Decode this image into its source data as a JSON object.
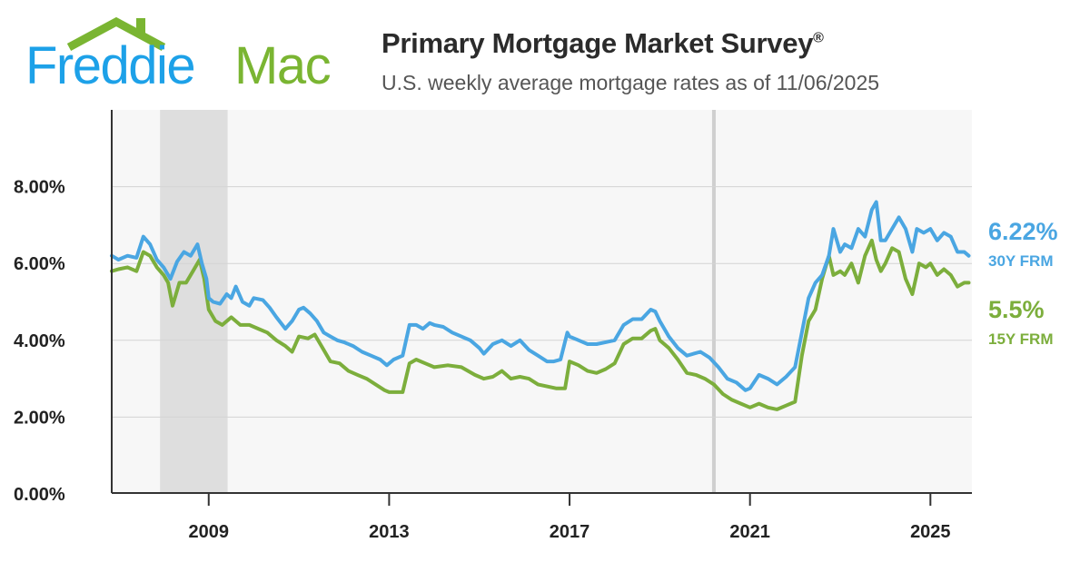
{
  "brand": {
    "name_part1": "Freddie",
    "name_part2": "Mac",
    "blue": "#1da1e8",
    "green": "#7ab532"
  },
  "header": {
    "title": "Primary Mortgage Market Survey",
    "title_mark": "®",
    "subtitle": "U.S. weekly average mortgage rates as of 11/06/2025"
  },
  "legend": {
    "frm30": {
      "value": "6.22%",
      "label": "30Y FRM",
      "color": "#4aa6e2"
    },
    "frm15": {
      "value": "5.5%",
      "label": "15Y FRM",
      "color": "#7cae3c"
    }
  },
  "chart_data": {
    "type": "line",
    "title": "Primary Mortgage Market Survey",
    "subtitle": "U.S. weekly average mortgage rates as of 11/06/2025",
    "xlim": [
      2006.85,
      2025.92
    ],
    "ylim": [
      0,
      10
    ],
    "y_ticks": [
      0,
      2,
      4,
      6,
      8
    ],
    "y_tick_labels": [
      "0.00%",
      "2.00%",
      "4.00%",
      "6.00%",
      "8.00%"
    ],
    "x_ticks": [
      2009,
      2013,
      2017,
      2021,
      2025
    ],
    "x_tick_labels": [
      "2009",
      "2013",
      "2017",
      "2021",
      "2025"
    ],
    "grid": true,
    "shaded_periods": [
      [
        2007.92,
        2009.42
      ]
    ],
    "vertical_markers": [
      2020.2
    ],
    "legend_position": "right",
    "series": [
      {
        "name": "30Y FRM",
        "color": "#4aa6e2",
        "x": [
          2006.85,
          2007.0,
          2007.2,
          2007.4,
          2007.55,
          2007.7,
          2007.85,
          2008.0,
          2008.15,
          2008.3,
          2008.45,
          2008.6,
          2008.75,
          2008.85,
          2008.95,
          2009.0,
          2009.1,
          2009.25,
          2009.4,
          2009.5,
          2009.6,
          2009.75,
          2009.9,
          2010.0,
          2010.2,
          2010.35,
          2010.5,
          2010.7,
          2010.85,
          2011.0,
          2011.1,
          2011.25,
          2011.4,
          2011.55,
          2011.7,
          2011.85,
          2012.0,
          2012.2,
          2012.4,
          2012.6,
          2012.8,
          2012.95,
          2013.1,
          2013.3,
          2013.45,
          2013.6,
          2013.75,
          2013.9,
          2014.0,
          2014.2,
          2014.4,
          2014.6,
          2014.8,
          2015.0,
          2015.1,
          2015.3,
          2015.5,
          2015.7,
          2015.9,
          2016.1,
          2016.3,
          2016.5,
          2016.65,
          2016.8,
          2016.95,
          2017.0,
          2017.2,
          2017.4,
          2017.6,
          2017.8,
          2018.0,
          2018.2,
          2018.4,
          2018.6,
          2018.8,
          2018.9,
          2019.0,
          2019.2,
          2019.4,
          2019.6,
          2019.75,
          2019.9,
          2020.1,
          2020.3,
          2020.5,
          2020.7,
          2020.9,
          2021.0,
          2021.2,
          2021.4,
          2021.6,
          2021.8,
          2022.0,
          2022.15,
          2022.3,
          2022.45,
          2022.6,
          2022.75,
          2022.85,
          2023.0,
          2023.1,
          2023.25,
          2023.4,
          2023.55,
          2023.7,
          2023.8,
          2023.9,
          2024.0,
          2024.15,
          2024.3,
          2024.45,
          2024.6,
          2024.7,
          2024.85,
          2025.0,
          2025.15,
          2025.3,
          2025.45,
          2025.6,
          2025.75,
          2025.85
        ],
        "y": [
          6.2,
          6.1,
          6.2,
          6.15,
          6.7,
          6.5,
          6.1,
          5.9,
          5.6,
          6.05,
          6.3,
          6.2,
          6.5,
          6.0,
          5.6,
          5.1,
          5.0,
          4.95,
          5.2,
          5.1,
          5.4,
          5.0,
          4.9,
          5.1,
          5.05,
          4.85,
          4.6,
          4.3,
          4.5,
          4.8,
          4.85,
          4.7,
          4.5,
          4.2,
          4.1,
          4.0,
          3.95,
          3.85,
          3.7,
          3.6,
          3.5,
          3.35,
          3.5,
          3.6,
          4.4,
          4.4,
          4.3,
          4.45,
          4.4,
          4.35,
          4.2,
          4.1,
          4.0,
          3.8,
          3.65,
          3.9,
          4.0,
          3.85,
          4.0,
          3.75,
          3.6,
          3.45,
          3.45,
          3.5,
          4.2,
          4.1,
          4.0,
          3.9,
          3.9,
          3.95,
          4.0,
          4.4,
          4.55,
          4.55,
          4.8,
          4.75,
          4.5,
          4.1,
          3.8,
          3.6,
          3.65,
          3.7,
          3.55,
          3.3,
          3.0,
          2.9,
          2.7,
          2.75,
          3.1,
          3.0,
          2.85,
          3.05,
          3.3,
          4.2,
          5.1,
          5.5,
          5.7,
          6.2,
          6.9,
          6.3,
          6.5,
          6.4,
          6.9,
          6.7,
          7.4,
          7.6,
          6.6,
          6.6,
          6.9,
          7.2,
          6.9,
          6.3,
          6.9,
          6.8,
          6.9,
          6.6,
          6.8,
          6.7,
          6.3,
          6.3,
          6.2
        ],
        "last_value": 6.22
      },
      {
        "name": "15Y FRM",
        "color": "#7cae3c",
        "x": [
          2006.85,
          2007.0,
          2007.2,
          2007.4,
          2007.55,
          2007.7,
          2007.85,
          2008.0,
          2008.1,
          2008.2,
          2008.35,
          2008.5,
          2008.65,
          2008.8,
          2008.9,
          2009.0,
          2009.15,
          2009.3,
          2009.5,
          2009.7,
          2009.9,
          2010.1,
          2010.3,
          2010.5,
          2010.7,
          2010.85,
          2011.0,
          2011.2,
          2011.35,
          2011.5,
          2011.7,
          2011.9,
          2012.1,
          2012.3,
          2012.5,
          2012.7,
          2012.9,
          2013.0,
          2013.15,
          2013.3,
          2013.45,
          2013.6,
          2013.8,
          2014.0,
          2014.3,
          2014.6,
          2014.9,
          2015.1,
          2015.3,
          2015.5,
          2015.7,
          2015.9,
          2016.1,
          2016.3,
          2016.5,
          2016.7,
          2016.9,
          2017.0,
          2017.2,
          2017.4,
          2017.6,
          2017.8,
          2018.0,
          2018.2,
          2018.4,
          2018.6,
          2018.8,
          2018.9,
          2019.0,
          2019.2,
          2019.4,
          2019.6,
          2019.8,
          2020.0,
          2020.2,
          2020.4,
          2020.6,
          2020.8,
          2021.0,
          2021.2,
          2021.4,
          2021.6,
          2021.8,
          2022.0,
          2022.15,
          2022.3,
          2022.45,
          2022.6,
          2022.75,
          2022.85,
          2023.0,
          2023.1,
          2023.25,
          2023.4,
          2023.55,
          2023.7,
          2023.8,
          2023.9,
          2024.0,
          2024.15,
          2024.3,
          2024.45,
          2024.6,
          2024.75,
          2024.9,
          2025.0,
          2025.15,
          2025.3,
          2025.45,
          2025.6,
          2025.75,
          2025.85
        ],
        "y": [
          5.8,
          5.85,
          5.9,
          5.8,
          6.3,
          6.2,
          5.9,
          5.7,
          5.5,
          4.9,
          5.5,
          5.5,
          5.8,
          6.1,
          5.6,
          4.8,
          4.5,
          4.4,
          4.6,
          4.4,
          4.4,
          4.3,
          4.2,
          4.0,
          3.85,
          3.7,
          4.1,
          4.05,
          4.15,
          3.85,
          3.45,
          3.4,
          3.2,
          3.1,
          3.0,
          2.85,
          2.7,
          2.65,
          2.65,
          2.65,
          3.4,
          3.5,
          3.4,
          3.3,
          3.35,
          3.3,
          3.1,
          3.0,
          3.05,
          3.2,
          3.0,
          3.05,
          3.0,
          2.85,
          2.8,
          2.75,
          2.75,
          3.45,
          3.35,
          3.2,
          3.15,
          3.25,
          3.4,
          3.9,
          4.05,
          4.05,
          4.25,
          4.3,
          4.0,
          3.8,
          3.5,
          3.15,
          3.1,
          3.0,
          2.85,
          2.6,
          2.45,
          2.35,
          2.25,
          2.35,
          2.25,
          2.2,
          2.3,
          2.4,
          3.6,
          4.5,
          4.8,
          5.6,
          6.2,
          5.7,
          5.8,
          5.7,
          6.0,
          5.5,
          6.2,
          6.6,
          6.1,
          5.8,
          6.0,
          6.4,
          6.3,
          5.6,
          5.2,
          6.0,
          5.9,
          6.0,
          5.7,
          5.85,
          5.7,
          5.4,
          5.5,
          5.5
        ],
        "last_value": 5.5
      }
    ]
  }
}
